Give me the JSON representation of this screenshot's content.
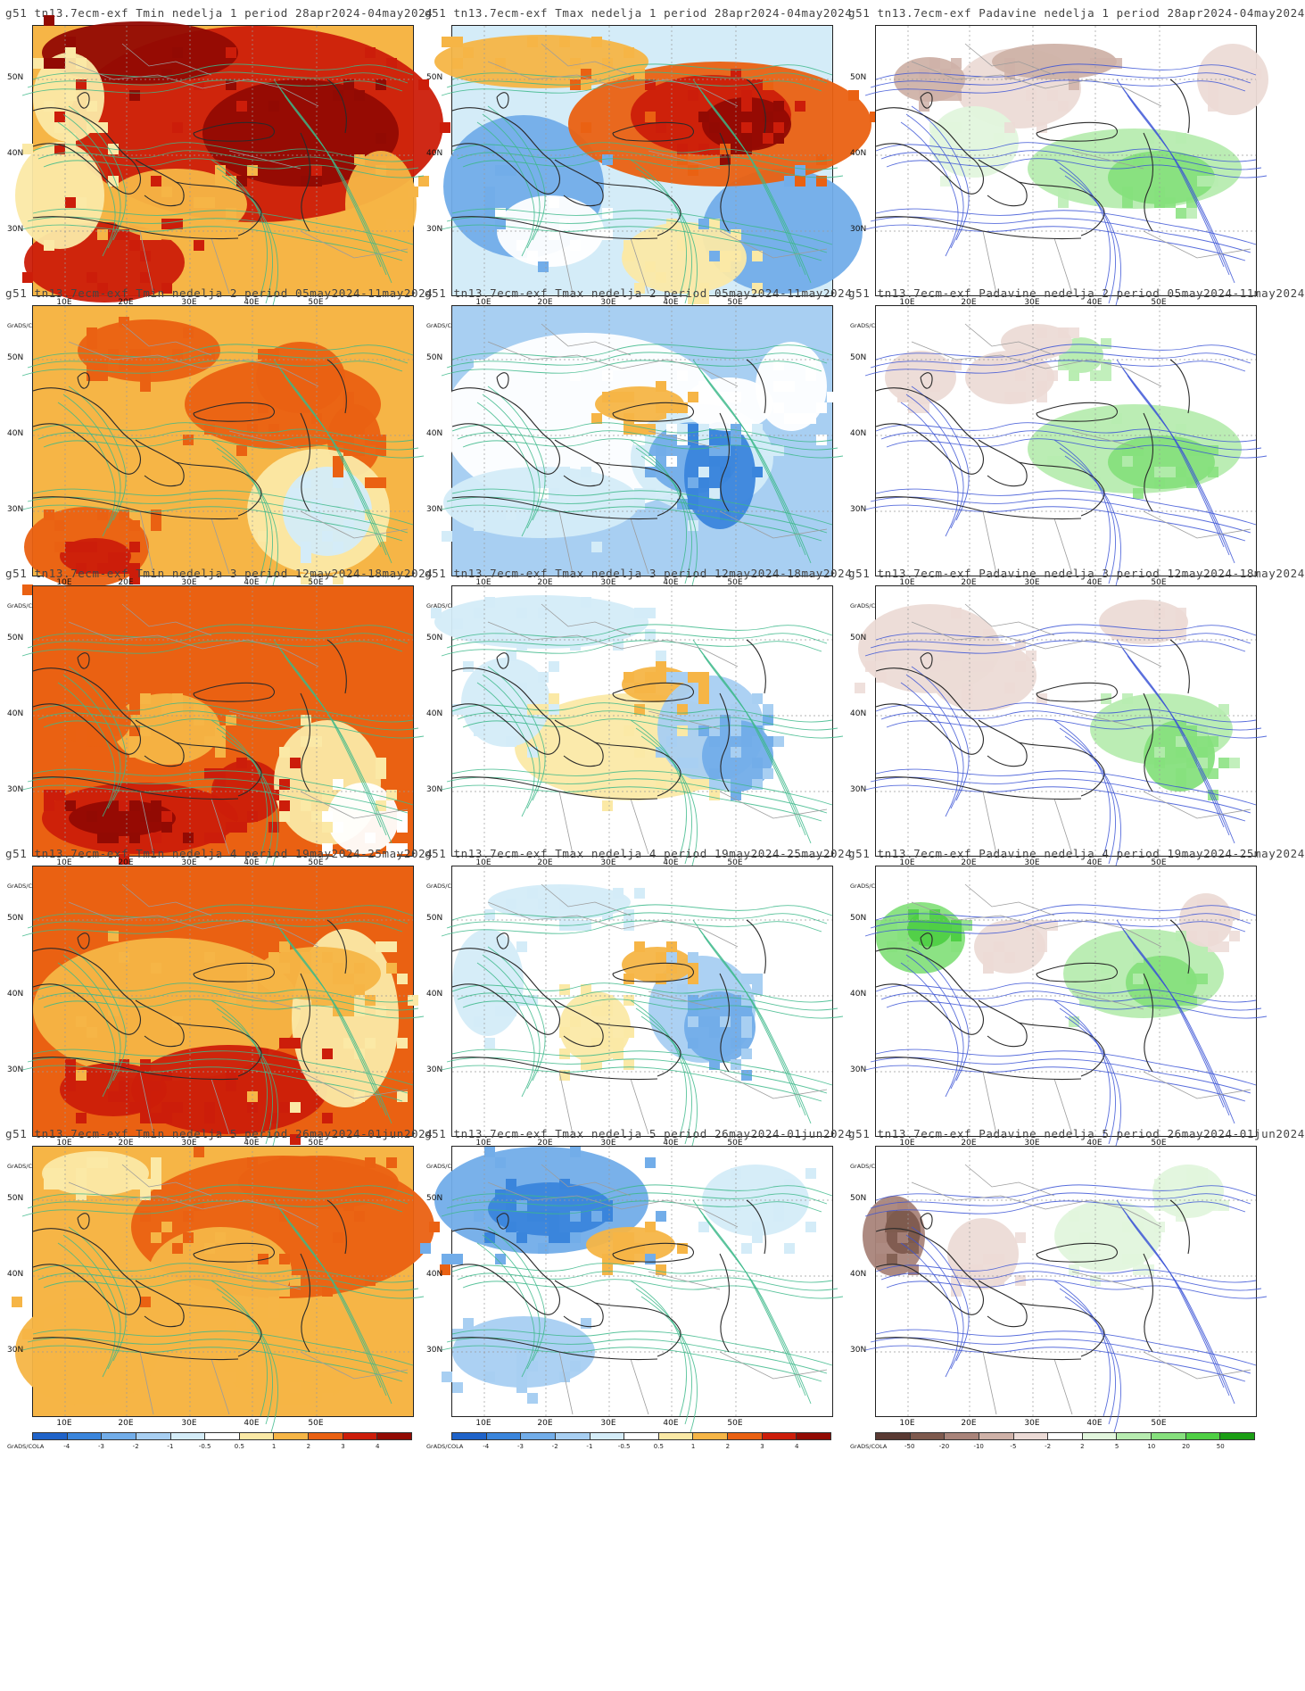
{
  "credit": "GrADS/COLA",
  "lat_labels": [
    "50N",
    "40N",
    "30N"
  ],
  "lon_labels": [
    "10E",
    "20E",
    "30E",
    "40E",
    "50E"
  ],
  "scales": {
    "temp": {
      "ticks": [
        "-4",
        "-3",
        "-2",
        "-1",
        "-0.5",
        "0.5",
        "1",
        "2",
        "3",
        "4"
      ],
      "colors": [
        "#1f63c9",
        "#3a85dc",
        "#72ade9",
        "#a8cff2",
        "#d4ecf8",
        "#ffffff",
        "#fbe9a6",
        "#f6b546",
        "#ea6112",
        "#cc1d0a",
        "#920a03"
      ]
    },
    "precip": {
      "ticks": [
        "-50",
        "-20",
        "-10",
        "-5",
        "-2",
        "2",
        "5",
        "10",
        "20",
        "50"
      ],
      "colors": [
        "#5a3a33",
        "#7e5a4e",
        "#a9847a",
        "#cfb2a8",
        "#ecdbd6",
        "#ffffff",
        "#e2f6dd",
        "#b7ecb0",
        "#86e07d",
        "#4fcf45",
        "#1b9e14"
      ]
    }
  },
  "weeks": [
    {
      "week": 1,
      "panels": [
        {
          "title": "g51 tn13.7ecm-exf Tmin nedelja 1 period 28apr2024-04may2024",
          "scale": "temp",
          "theme": "tmin1"
        },
        {
          "title": "g51 tn13.7ecm-exf Tmax nedelja 1 period 28apr2024-04may2024",
          "scale": "temp",
          "theme": "tmax1"
        },
        {
          "title": "g51 tn13.7ecm-exf Padavine nedelja 1 period 28apr2024-04may2024",
          "scale": "precip",
          "theme": "prec1"
        }
      ]
    },
    {
      "week": 2,
      "panels": [
        {
          "title": "g51 tn13.7ecm-exf Tmin nedelja 2 period 05may2024-11may2024",
          "scale": "temp",
          "theme": "tmin2"
        },
        {
          "title": "g51 tn13.7ecm-exf Tmax nedelja 2 period 05may2024-11may2024",
          "scale": "temp",
          "theme": "tmax2"
        },
        {
          "title": "g51 tn13.7ecm-exf Padavine nedelja 2 period 05may2024-11may2024",
          "scale": "precip",
          "theme": "prec2"
        }
      ]
    },
    {
      "week": 3,
      "panels": [
        {
          "title": "g51 tn13.7ecm-exf Tmin nedelja 3 period 12may2024-18may2024",
          "scale": "temp",
          "theme": "tmin3"
        },
        {
          "title": "g51 tn13.7ecm-exf Tmax nedelja 3 period 12may2024-18may2024",
          "scale": "temp",
          "theme": "tmax3"
        },
        {
          "title": "g51 tn13.7ecm-exf Padavine nedelja 3 period 12may2024-18may2024",
          "scale": "precip",
          "theme": "prec3"
        }
      ]
    },
    {
      "week": 4,
      "panels": [
        {
          "title": "g51 tn13.7ecm-exf Tmin nedelja 4 period 19may2024-25may2024",
          "scale": "temp",
          "theme": "tmin4"
        },
        {
          "title": "g51 tn13.7ecm-exf Tmax nedelja 4 period 19may2024-25may2024",
          "scale": "temp",
          "theme": "tmax4"
        },
        {
          "title": "g51 tn13.7ecm-exf Padavine nedelja 4 period 19may2024-25may2024",
          "scale": "precip",
          "theme": "prec4"
        }
      ]
    },
    {
      "week": 5,
      "panels": [
        {
          "title": "g51 tn13.7ecm-exf Tmin nedelja 5 period 26may2024-01jun2024",
          "scale": "temp",
          "theme": "tmin5"
        },
        {
          "title": "g51 tn13.7ecm-exf Tmax nedelja 5 period 26may2024-01jun2024",
          "scale": "temp",
          "theme": "tmax5"
        },
        {
          "title": "g51 tn13.7ecm-exf Padavine nedelja 5 period 26may2024-01jun2024",
          "scale": "precip",
          "theme": "prec5"
        }
      ]
    }
  ]
}
